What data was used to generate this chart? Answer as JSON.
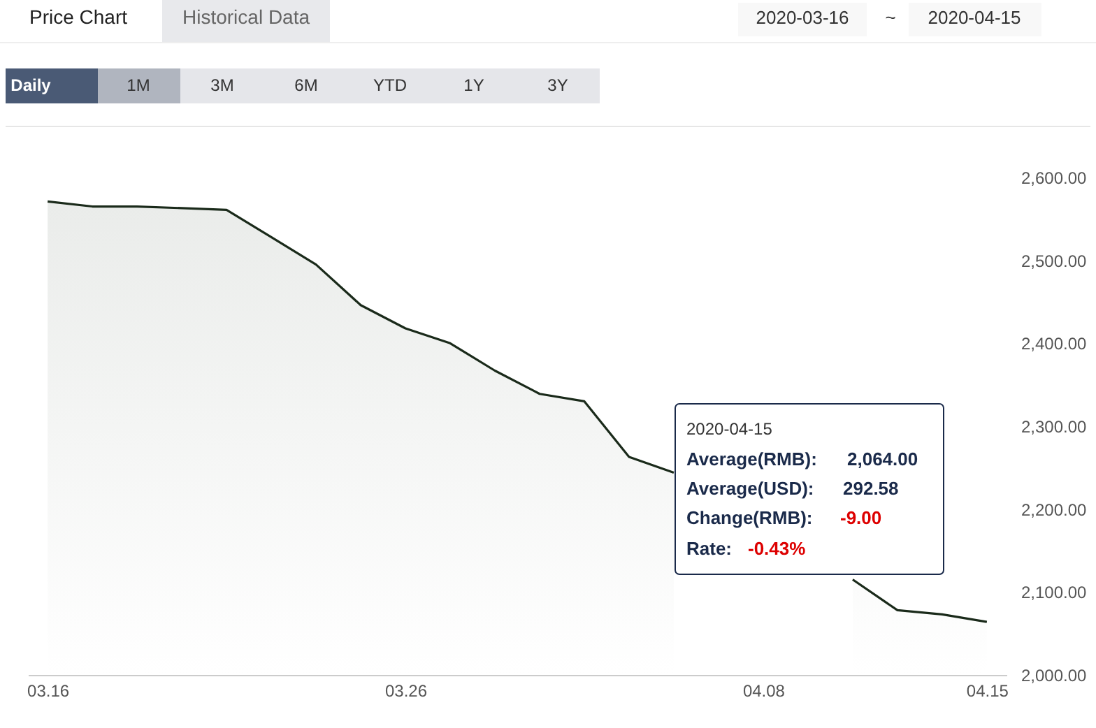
{
  "chart_data": {
    "type": "area",
    "categories": [
      "03.16",
      null,
      null,
      null,
      null,
      null,
      null,
      null,
      "03.26",
      null,
      null,
      null,
      null,
      null,
      null,
      null,
      "04.08",
      null,
      null,
      null,
      null,
      "04.15"
    ],
    "series": [
      {
        "color": "#1a2a1a",
        "values": [
          2571,
          2565,
          2565,
          2563,
          2561,
          2528,
          2495,
          2446,
          2418,
          2400,
          2367,
          2339,
          2330,
          2263,
          2244,
          null,
          null,
          null,
          2115,
          2078,
          2073,
          2064
        ]
      }
    ],
    "ylim": [
      2000,
      2600
    ],
    "yticks": [
      {
        "value": 2000,
        "label": "2,000.00"
      },
      {
        "value": 2100,
        "label": "2,100.00"
      },
      {
        "value": 2200,
        "label": "2,200.00"
      },
      {
        "value": 2300,
        "label": "2,300.00"
      },
      {
        "value": 2400,
        "label": "2,400.00"
      },
      {
        "value": 2500,
        "label": "2,500.00"
      },
      {
        "value": 2600,
        "label": "2,600.00"
      }
    ],
    "grid": false,
    "annotations": [
      "Price Chart",
      "Historical Data",
      "2020-03-16",
      "~",
      "2020-04-15",
      "Daily",
      "1M",
      "3M",
      "6M",
      "YTD",
      "1Y",
      "3Y",
      "2020-04-15",
      "Average(RMB):",
      "2,064.00",
      "Average(USD):",
      "292.58",
      "Change(RMB):",
      "-9.00",
      "Rate:",
      "-0.43%"
    ]
  }
}
